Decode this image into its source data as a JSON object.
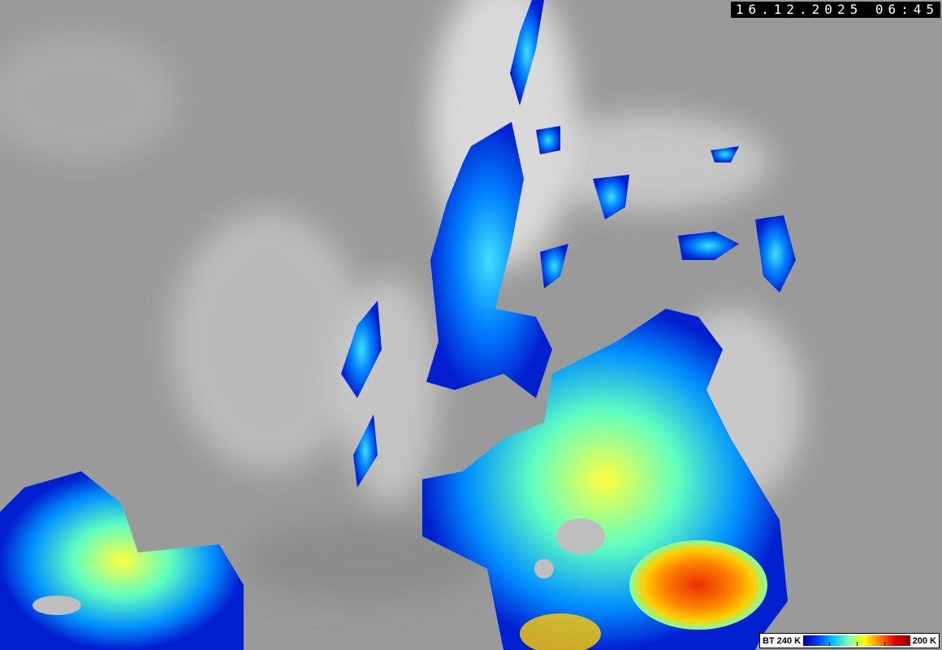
{
  "timestamp": "16.12.2025 06:45",
  "legend": {
    "left_label": "BT 240 K",
    "right_label": "200 K",
    "colors": [
      "#0000a0",
      "#0040ff",
      "#00c8ff",
      "#80ffb0",
      "#ffff00",
      "#ff8000",
      "#e00000",
      "#900000"
    ]
  },
  "background_color": "#9a9a9a"
}
